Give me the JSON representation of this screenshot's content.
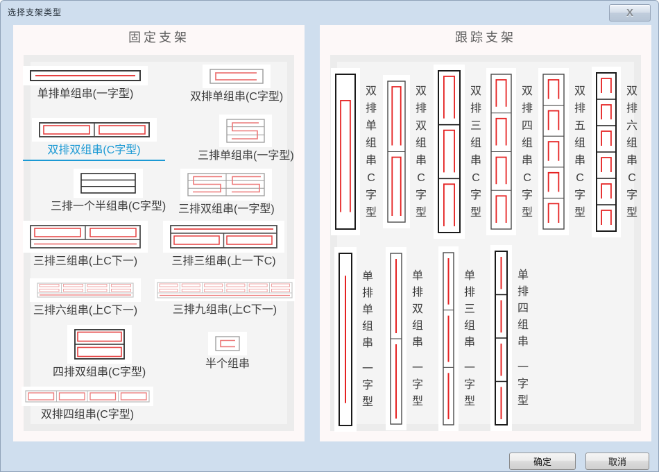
{
  "window": {
    "title": "选择支架类型",
    "close": "X"
  },
  "fixed_panel": {
    "header": "固定支架"
  },
  "tracking_panel": {
    "header": "跟踪支架"
  },
  "buttons": {
    "ok": "确定",
    "cancel": "取消"
  },
  "colors": {
    "accent": "#1b99d4",
    "red": "#e54040",
    "bright_red": "#e52222",
    "light_red": "#efa4a4",
    "dialog_bg": "#cfdeee"
  },
  "selected_item": "双排双组串(C字型)",
  "fixed_items": [
    {
      "label": "单排单组串(一字型)",
      "thumb": "single_line",
      "selected": false
    },
    {
      "label": "双排单组串(C字型)",
      "thumb": "c_single",
      "selected": false
    },
    {
      "label": "双排双组串(C字型)",
      "thumb": "two_cell_rect",
      "selected": true
    },
    {
      "label": "三排单组串(一字型)",
      "thumb": "s_shape",
      "selected": false
    },
    {
      "label": "三排一个半组串(C字型)",
      "thumb": "three_row_blank",
      "selected": false
    },
    {
      "label": "三排双组串(一字型)",
      "thumb": "double_s",
      "selected": false
    },
    {
      "label": "三排三组串(上C下一)",
      "thumb": "upC_down1",
      "selected": false
    },
    {
      "label": "三排三组串(上一下C)",
      "thumb": "up1_downC",
      "selected": false
    },
    {
      "label": "三排六组串(上C下一)",
      "thumb": "six_light",
      "selected": false
    },
    {
      "label": "三排九组串(上C下一)",
      "thumb": "nine_light",
      "selected": false
    },
    {
      "label": "四排双组串(C字型)",
      "thumb": "four_row_two",
      "selected": false
    },
    {
      "label": "半个组串",
      "thumb": "half_string",
      "selected": false
    },
    {
      "label": "双排四组串(C字型)",
      "thumb": "four_cell_row",
      "selected": false
    }
  ],
  "tracking_items_top": [
    {
      "label": "双排单组串C字型",
      "segments": 1,
      "style": "c",
      "variant": "dark"
    },
    {
      "label": "双排双组串C字型",
      "segments": 2,
      "style": "c",
      "variant": "mid"
    },
    {
      "label": "双排三组串C字型",
      "segments": 3,
      "style": "c",
      "variant": "dark"
    },
    {
      "label": "双排四组串C字型",
      "segments": 4,
      "style": "c",
      "variant": "mid"
    },
    {
      "label": "双排五组串C字型",
      "segments": 5,
      "style": "c",
      "variant": "mid"
    },
    {
      "label": "双排六组串C字型",
      "segments": 6,
      "style": "c",
      "variant": "dark"
    }
  ],
  "tracking_items_bottom": [
    {
      "label": "单排单组串 一字型",
      "segments": 1,
      "style": "line",
      "variant": "dark"
    },
    {
      "label": "单排双组串 一字型",
      "segments": 2,
      "style": "line",
      "variant": "mid"
    },
    {
      "label": "单排三组串 一字型",
      "segments": 3,
      "style": "line",
      "variant": "mid"
    },
    {
      "label": "单排四组串 一字型",
      "segments": 4,
      "style": "line",
      "variant": "dark"
    }
  ]
}
